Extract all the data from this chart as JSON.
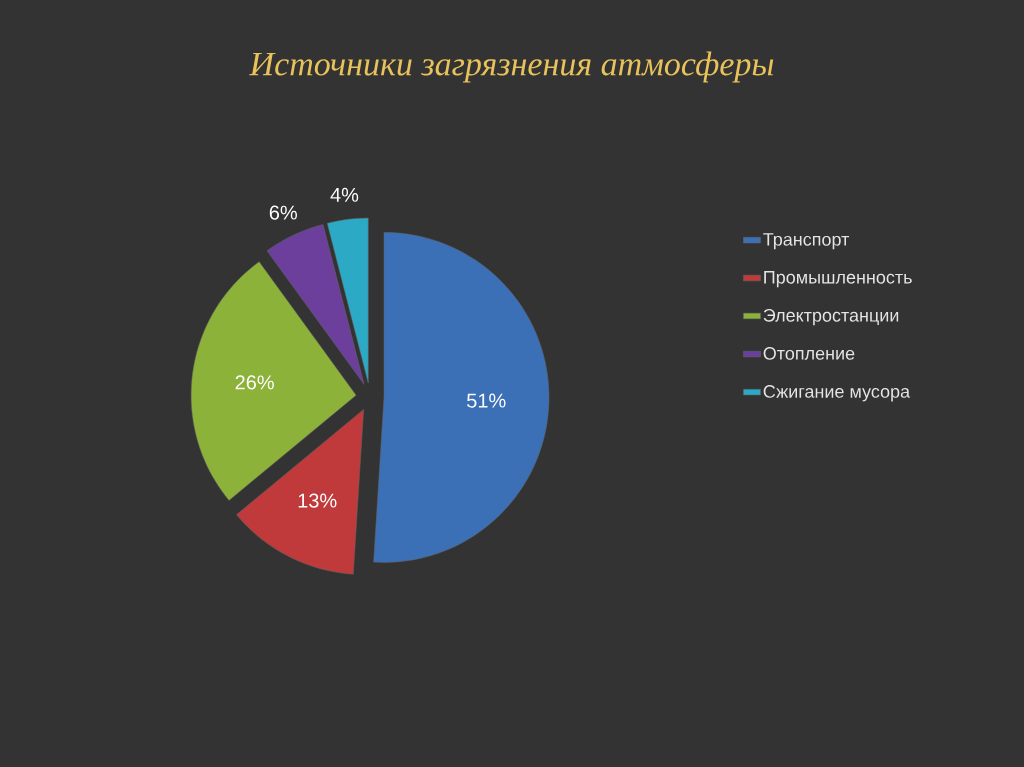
{
  "chart_data": {
    "type": "pie",
    "title": "Источники загрязнения атмосферы",
    "categories": [
      "Транспорт",
      "Промышленность",
      "Электростанции",
      "Отопление",
      "Сжигание мусора"
    ],
    "values": [
      51,
      13,
      26,
      6,
      4
    ],
    "value_labels": [
      "51%",
      "13%",
      "26%",
      "6%",
      "4%"
    ],
    "colors": [
      "#3b6fb6",
      "#c0393b",
      "#8cb23a",
      "#6b3f9b",
      "#2ba9c5"
    ],
    "legend": "right"
  }
}
